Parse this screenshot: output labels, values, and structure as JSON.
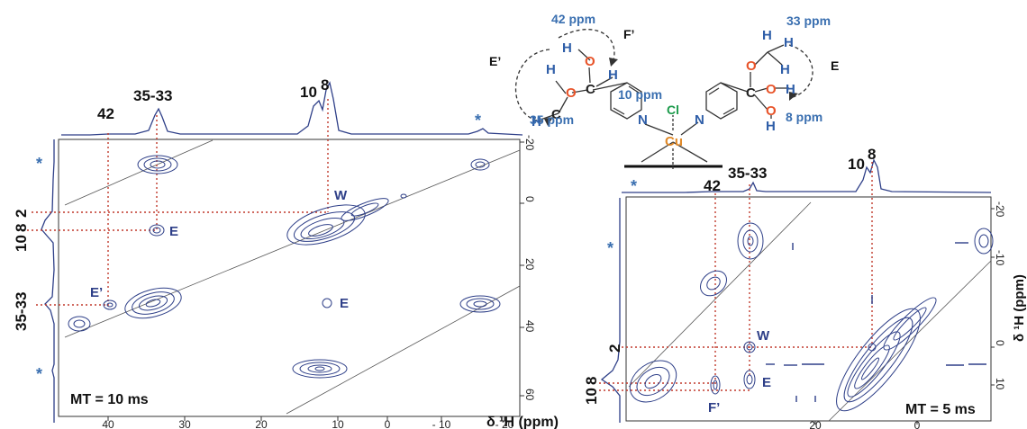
{
  "colors": {
    "contour": "#2e3f88",
    "guide": "#c0392b",
    "diag": "#555555",
    "annotation": "#3a6fb0",
    "oxygen": "#e8542a",
    "chlorine": "#1a9a4a",
    "copper": "#e08a2a"
  },
  "left_panel": {
    "top_labels": {
      "a": "42",
      "b": "35-33",
      "c": "10",
      "d": "8",
      "star": "*"
    },
    "side_labels": {
      "a": "2",
      "b": "10",
      "c": "8",
      "d": "35-33",
      "star1": "*",
      "star2": "*"
    },
    "peak_labels": {
      "w": "W",
      "e1": "E",
      "e2": "E’",
      "e3": "E"
    },
    "mt_label": "MT = 10 ms",
    "x_ticks": [
      "40",
      "30",
      "20",
      "10",
      "0",
      "- 10",
      "- 20"
    ],
    "y_ticks": [
      "-20",
      "0",
      "20",
      "40",
      "60"
    ]
  },
  "right_panel": {
    "top_labels": {
      "star": "*",
      "a": "42",
      "b": "35-33",
      "c": "10",
      "d": "8"
    },
    "side_labels": {
      "star": "*",
      "a": "2",
      "b": "10",
      "c": "8"
    },
    "peak_labels": {
      "w": "W",
      "e": "E",
      "f": "F’"
    },
    "mt_label": "MT = 5 ms",
    "x_ticks": [
      "20",
      "0"
    ],
    "y_ticks": [
      "-20",
      "-10",
      "0",
      "10"
    ],
    "y_axis_label": "δ ¹H (ppm)"
  },
  "x_axis_label": "δ ¹H (ppm)",
  "structure": {
    "ppm_42": "42 ppm",
    "ppm_35": "35 ppm",
    "ppm_10": "10 ppm",
    "ppm_33": "33 ppm",
    "ppm_8": "8 ppm",
    "label_e_prime": "E’",
    "label_f_prime": "F’",
    "label_e": "E",
    "atom_o": "O",
    "atom_h": "H",
    "atom_c": "C",
    "atom_n": "N",
    "atom_cl": "Cl",
    "atom_cu": "Cu"
  }
}
